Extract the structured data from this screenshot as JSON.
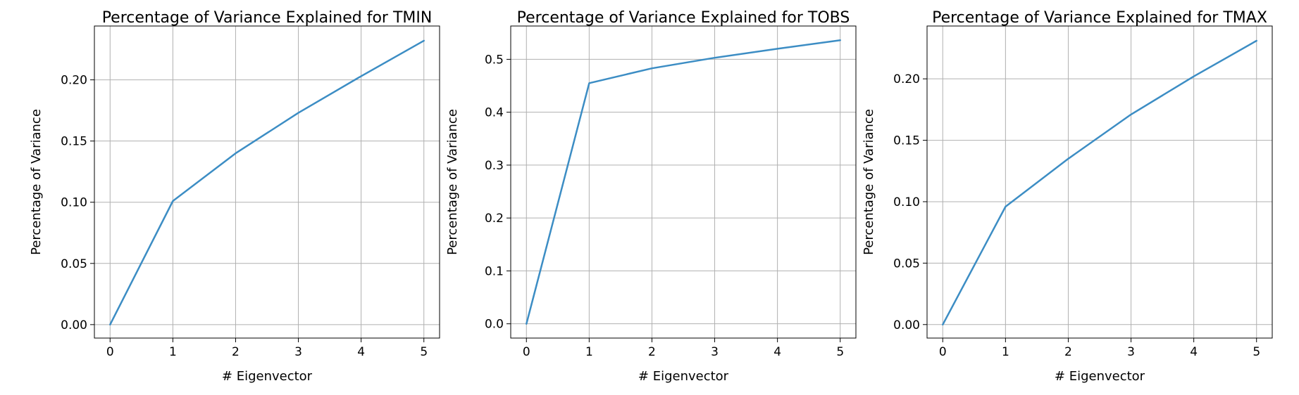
{
  "chart_data": [
    {
      "type": "line",
      "title": "Percentage of Variance Explained for TMIN",
      "xlabel": "# Eigenvector",
      "ylabel": "Percentage of Variance",
      "x": [
        0,
        1,
        2,
        3,
        4,
        5
      ],
      "series": [
        {
          "values": [
            0.0,
            0.101,
            0.14,
            0.173,
            0.203,
            0.232
          ]
        }
      ],
      "xlim": [
        -0.25,
        5.25
      ],
      "ylim": [
        -0.011,
        0.244
      ],
      "xticks": [
        "0",
        "1",
        "2",
        "3",
        "4",
        "5"
      ],
      "yticks": [
        "0.00",
        "0.05",
        "0.10",
        "0.15",
        "0.20"
      ],
      "ytick_values": [
        0,
        0.05,
        0.1,
        0.15,
        0.2
      ],
      "grid": true,
      "color": "#3c8dc4"
    },
    {
      "type": "line",
      "title": "Percentage of Variance Explained for TOBS",
      "xlabel": "# Eigenvector",
      "ylabel": "Percentage of Variance",
      "x": [
        0,
        1,
        2,
        3,
        4,
        5
      ],
      "series": [
        {
          "values": [
            0.0,
            0.455,
            0.483,
            0.503,
            0.52,
            0.536
          ]
        }
      ],
      "xlim": [
        -0.25,
        5.25
      ],
      "ylim": [
        -0.027,
        0.563
      ],
      "xticks": [
        "0",
        "1",
        "2",
        "3",
        "4",
        "5"
      ],
      "yticks": [
        "0.0",
        "0.1",
        "0.2",
        "0.3",
        "0.4",
        "0.5"
      ],
      "ytick_values": [
        0,
        0.1,
        0.2,
        0.3,
        0.4,
        0.5
      ],
      "grid": true,
      "color": "#3c8dc4"
    },
    {
      "type": "line",
      "title": "Percentage of Variance Explained for TMAX",
      "xlabel": "# Eigenvector",
      "ylabel": "Percentage of Variance",
      "x": [
        0,
        1,
        2,
        3,
        4,
        5
      ],
      "series": [
        {
          "values": [
            0.0,
            0.096,
            0.135,
            0.171,
            0.202,
            0.231
          ]
        }
      ],
      "xlim": [
        -0.25,
        5.25
      ],
      "ylim": [
        -0.011,
        0.243
      ],
      "xticks": [
        "0",
        "1",
        "2",
        "3",
        "4",
        "5"
      ],
      "yticks": [
        "0.00",
        "0.05",
        "0.10",
        "0.15",
        "0.20"
      ],
      "ytick_values": [
        0,
        0.05,
        0.1,
        0.15,
        0.2
      ],
      "grid": true,
      "color": "#3c8dc4"
    }
  ]
}
